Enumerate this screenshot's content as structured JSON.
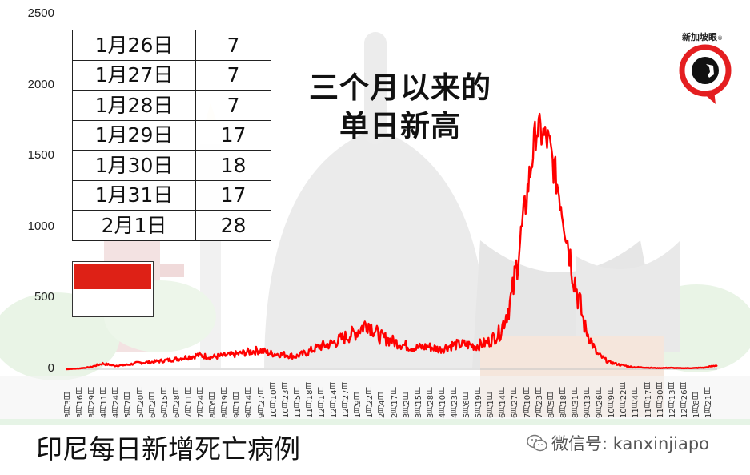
{
  "headline": {
    "line1": "三个月以来的",
    "line2": "单日新高"
  },
  "footer": {
    "title": "印尼每日新增死亡病例",
    "wechat_label": "微信号: kanxinjiapo"
  },
  "logo": {
    "text": "新加坡眼",
    "registered": "®",
    "icon": "eye-speech-bubble-icon"
  },
  "flag": {
    "name": "indonesia-flag",
    "top_color": "#de2116",
    "bottom_color": "#ffffff"
  },
  "table": {
    "rows": [
      {
        "date": "1月26日",
        "value": "7"
      },
      {
        "date": "1月27日",
        "value": "7"
      },
      {
        "date": "1月28日",
        "value": "7"
      },
      {
        "date": "1月29日",
        "value": "17"
      },
      {
        "date": "1月30日",
        "value": "18"
      },
      {
        "date": "1月31日",
        "value": "17"
      },
      {
        "date": "2月1日",
        "value": "28"
      }
    ]
  },
  "colors": {
    "line": "#ff0000",
    "axis": "#bbbbbb",
    "accent_red": "#de2116"
  },
  "chart_data": {
    "type": "line",
    "title": "印尼每日新增死亡病例",
    "xlabel": "",
    "ylabel": "",
    "ylim": [
      0,
      2500
    ],
    "yticks": [
      "0",
      "500",
      "1000",
      "1500",
      "2000",
      "2500"
    ],
    "grid": false,
    "legend": "none",
    "x_tick_labels": [
      "3月3日",
      "3月16日",
      "3月29日",
      "4月11日",
      "4月24日",
      "5月7日",
      "5月20日",
      "6月2日",
      "6月15日",
      "6月28日",
      "7月11日",
      "7月24日",
      "8月6日",
      "8月19日",
      "9月1日",
      "9月14日",
      "9月27日",
      "10月10日",
      "10月23日",
      "11月5日",
      "11月18日",
      "12月1日",
      "12月14日",
      "12月27日",
      "1月9日",
      "1月22日",
      "2月4日",
      "2月17日",
      "3月2日",
      "3月15日",
      "3月28日",
      "4月10日",
      "4月23日",
      "5月6日",
      "5月19日",
      "6月1日",
      "6月14日",
      "6月27日",
      "7月10日",
      "7月23日",
      "8月5日",
      "8月18日",
      "8月31日",
      "9月13日",
      "9月26日",
      "10月9日",
      "10月22日",
      "11月4日",
      "11月17日",
      "11月30日",
      "12月13日",
      "12月26日",
      "1月8日",
      "1月21日"
    ],
    "series": [
      {
        "name": "每日新增死亡病例",
        "x": [
          "3月3日",
          "3月16日",
          "3月29日",
          "4月11日",
          "4月24日",
          "5月7日",
          "5月20日",
          "6月2日",
          "6月15日",
          "6月28日",
          "7月11日",
          "7月24日",
          "8月6日",
          "8月19日",
          "9月1日",
          "9月14日",
          "9月27日",
          "10月10日",
          "10月23日",
          "11月5日",
          "11月18日",
          "12月1日",
          "12月14日",
          "12月27日",
          "1月9日",
          "1月22日",
          "2月4日",
          "2月17日",
          "3月2日",
          "3月15日",
          "3月28日",
          "4月10日",
          "4月23日",
          "5月6日",
          "5月19日",
          "6月1日",
          "6月14日",
          "6月27日",
          "7月10日",
          "7月23日",
          "8月5日",
          "8月18日",
          "8月31日",
          "9月13日",
          "9月26日",
          "10月9日",
          "10月22日",
          "11月4日",
          "11月17日",
          "11月30日",
          "12月13日",
          "12月26日",
          "1月8日",
          "1月21日",
          "2月1日"
        ],
        "values": [
          0,
          5,
          15,
          40,
          25,
          30,
          45,
          50,
          60,
          70,
          85,
          100,
          85,
          95,
          105,
          120,
          135,
          110,
          105,
          90,
          120,
          160,
          180,
          220,
          260,
          330,
          230,
          200,
          170,
          150,
          160,
          140,
          170,
          175,
          165,
          190,
          260,
          520,
          1100,
          1700,
          1600,
          1200,
          700,
          300,
          110,
          50,
          30,
          15,
          12,
          8,
          10,
          7,
          8,
          12,
          28
        ]
      }
    ],
    "annotations": [
      "三个月以来的单日新高",
      "1月26日: 7",
      "1月27日: 7",
      "1月28日: 7",
      "1月29日: 17",
      "1月30日: 18",
      "1月31日: 17",
      "2月1日: 28"
    ]
  }
}
